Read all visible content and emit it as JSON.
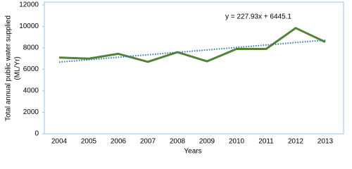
{
  "chart_data": {
    "type": "line",
    "ylabel": [
      "Total annual public water supplied",
      "(ML/Yr)"
    ],
    "xlabel": "Years",
    "annotation": "y = 227.93x + 6445.1",
    "categories": [
      "2004",
      "2005",
      "2006",
      "2007",
      "2008",
      "2009",
      "2010",
      "2011",
      "2012",
      "2013"
    ],
    "series": [
      {
        "color": "#548235",
        "style": "solid",
        "values": [
          7100,
          7000,
          7450,
          6700,
          7600,
          6750,
          7900,
          7900,
          9850,
          8550
        ]
      },
      {
        "color": "#2e75b6",
        "style": "dotted",
        "values": [
          6673.03,
          6900.96,
          7128.89,
          7356.82,
          7584.75,
          7812.68,
          8040.61,
          8268.54,
          8496.47,
          8724.4
        ]
      }
    ],
    "ylim": [
      0,
      12000
    ],
    "yticks": [
      0,
      2000,
      4000,
      6000,
      8000,
      10000,
      12000
    ]
  }
}
